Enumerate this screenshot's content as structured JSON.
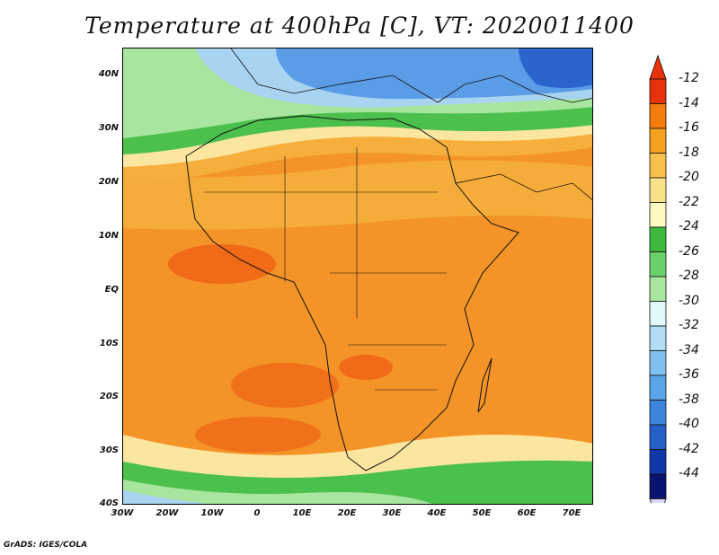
{
  "title": "Temperature at 400hPa [C], VT: 2020011400",
  "credit": "GrADS: IGES/COLA",
  "lat_labels": [
    "40N",
    "30N",
    "20N",
    "10N",
    "EQ",
    "10S",
    "20S",
    "30S",
    "40S"
  ],
  "lon_labels": [
    "30W",
    "20W",
    "10W",
    "0",
    "10E",
    "20E",
    "30E",
    "40E",
    "50E",
    "60E",
    "70E"
  ],
  "colorbar": {
    "labels": [
      "-12",
      "-14",
      "-16",
      "-18",
      "-20",
      "-22",
      "-24",
      "-26",
      "-28",
      "-30",
      "-32",
      "-34",
      "-36",
      "-38",
      "-40",
      "-42",
      "-44"
    ],
    "colors": [
      "#e8320c",
      "#f47c0c",
      "#f6a020",
      "#f8c04a",
      "#fbe08a",
      "#fdf8c0",
      "#3cb83c",
      "#6ad06a",
      "#a8e6a0",
      "#e0f8f8",
      "#b0dcf4",
      "#80c0ee",
      "#5aa4e8",
      "#3c84dc",
      "#2460c8",
      "#1038a8",
      "#0a1470"
    ],
    "top_arrow_color": "#e8320c",
    "bottom_arrow_color": "#dcd8f8"
  },
  "colors": {
    "ocean_orange": "#f49428",
    "deep_orange": "#f06a18",
    "light_orange": "#f6ae3c",
    "yellow": "#fbe6a0",
    "green": "#4cc04c",
    "pale_green": "#a8e6a0",
    "light_blue": "#a8d4f2",
    "blue": "#5a9ce6",
    "deep_blue": "#2a64cc"
  }
}
